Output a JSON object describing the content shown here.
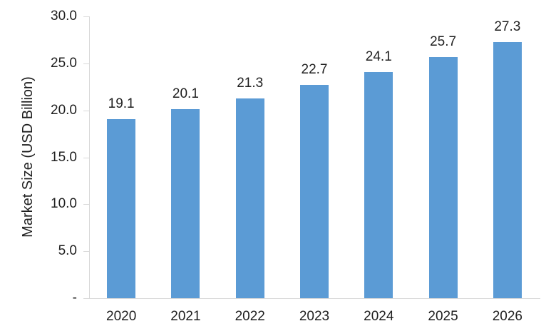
{
  "chart_data": {
    "type": "bar",
    "title": "",
    "xlabel": "",
    "ylabel": "Market Size (USD Billion)",
    "categories": [
      "2020",
      "2021",
      "2022",
      "2023",
      "2024",
      "2025",
      "2026"
    ],
    "values": [
      19.1,
      20.1,
      21.3,
      22.7,
      24.1,
      25.7,
      27.3
    ],
    "value_labels": [
      "19.1",
      "20.1",
      "21.3",
      "22.7",
      "24.1",
      "25.7",
      "27.3"
    ],
    "ylim": [
      0,
      30
    ],
    "y_ticks": [
      {
        "value": 30,
        "label": "30.0"
      },
      {
        "value": 25,
        "label": "25.0"
      },
      {
        "value": 20,
        "label": "20.0"
      },
      {
        "value": 15,
        "label": "15.0"
      },
      {
        "value": 10,
        "label": "10.0"
      },
      {
        "value": 5,
        "label": "5.0"
      },
      {
        "value": 0,
        "label": "-"
      }
    ],
    "grid": false,
    "legend": false,
    "colors": {
      "bar": "#5B9BD5",
      "axis_line": "#D9D9D9",
      "text": "#1f1f1f",
      "background": "#ffffff"
    }
  }
}
